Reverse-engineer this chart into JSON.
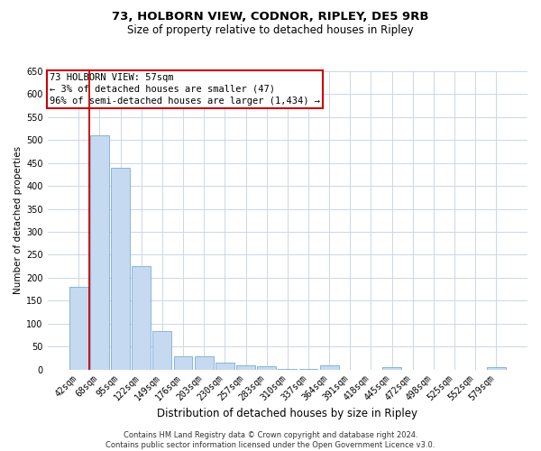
{
  "title_line1": "73, HOLBORN VIEW, CODNOR, RIPLEY, DE5 9RB",
  "title_line2": "Size of property relative to detached houses in Ripley",
  "xlabel": "Distribution of detached houses by size in Ripley",
  "ylabel": "Number of detached properties",
  "footer_line1": "Contains HM Land Registry data © Crown copyright and database right 2024.",
  "footer_line2": "Contains public sector information licensed under the Open Government Licence v3.0.",
  "annotation_line1": "73 HOLBORN VIEW: 57sqm",
  "annotation_line2": "← 3% of detached houses are smaller (47)",
  "annotation_line3": "96% of semi-detached houses are larger (1,434) →",
  "bar_color": "#c5d9f1",
  "bar_edge_color": "#7aadd4",
  "ref_line_color": "#cc0000",
  "categories": [
    "42sqm",
    "68sqm",
    "95sqm",
    "122sqm",
    "149sqm",
    "176sqm",
    "203sqm",
    "230sqm",
    "257sqm",
    "283sqm",
    "310sqm",
    "337sqm",
    "364sqm",
    "391sqm",
    "418sqm",
    "445sqm",
    "472sqm",
    "498sqm",
    "525sqm",
    "552sqm",
    "579sqm"
  ],
  "values": [
    180,
    510,
    440,
    225,
    83,
    28,
    28,
    15,
    9,
    7,
    2,
    2,
    9,
    0,
    0,
    5,
    0,
    0,
    0,
    0,
    5
  ],
  "ylim": [
    0,
    650
  ],
  "yticks": [
    0,
    50,
    100,
    150,
    200,
    250,
    300,
    350,
    400,
    450,
    500,
    550,
    600,
    650
  ],
  "figsize": [
    6.0,
    5.0
  ],
  "dpi": 100,
  "bg_color": "#ffffff",
  "grid_color": "#ccd6e8",
  "annotation_box_color": "#ffffff",
  "annotation_box_edge": "#cc0000",
  "title1_fontsize": 9.5,
  "title2_fontsize": 8.5,
  "xlabel_fontsize": 8.5,
  "ylabel_fontsize": 7.5,
  "tick_fontsize": 7,
  "annotation_fontsize": 7.5,
  "footer_fontsize": 6
}
